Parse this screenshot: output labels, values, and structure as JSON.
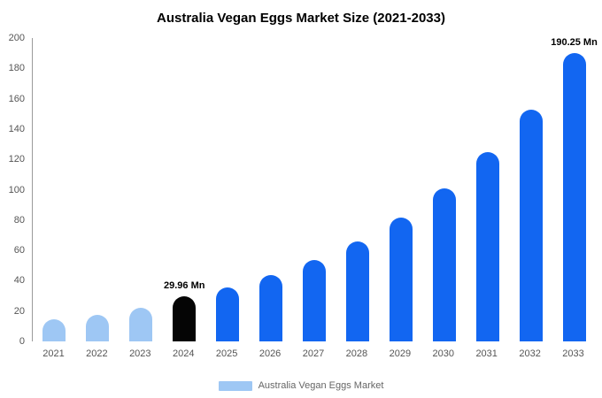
{
  "title": "Australia Vegan Eggs Market Size (2021-2033)",
  "legend": {
    "label": "Australia Vegan Eggs Market",
    "swatch_color": "#9ec7f4"
  },
  "colors": {
    "light_blue": "#9ec7f4",
    "primary_blue": "#1266f1",
    "highlight_black": "#050505"
  },
  "chart_data": {
    "type": "bar",
    "title": "Australia Vegan Eggs Market Size (2021-2033)",
    "categories": [
      "2021",
      "2022",
      "2023",
      "2024",
      "2025",
      "2026",
      "2027",
      "2028",
      "2029",
      "2030",
      "2031",
      "2032",
      "2033"
    ],
    "values": [
      14.5,
      17.5,
      22.3,
      29.96,
      35.5,
      43.5,
      53.5,
      66,
      81.5,
      101,
      124.5,
      152.5,
      190.25
    ],
    "bar_colors": [
      "#9ec7f4",
      "#9ec7f4",
      "#9ec7f4",
      "#050505",
      "#1266f1",
      "#1266f1",
      "#1266f1",
      "#1266f1",
      "#1266f1",
      "#1266f1",
      "#1266f1",
      "#1266f1",
      "#1266f1"
    ],
    "annotations": [
      {
        "index": 3,
        "text": "29.96 Mn"
      },
      {
        "index": 12,
        "text": "190.25 Mn"
      }
    ],
    "unit": "Mn",
    "xlabel": "",
    "ylabel": "",
    "ylim": [
      0,
      200
    ],
    "yticks": [
      0,
      20,
      40,
      60,
      80,
      100,
      120,
      140,
      160,
      180,
      200
    ],
    "grid": false,
    "legend_position": "bottom"
  }
}
